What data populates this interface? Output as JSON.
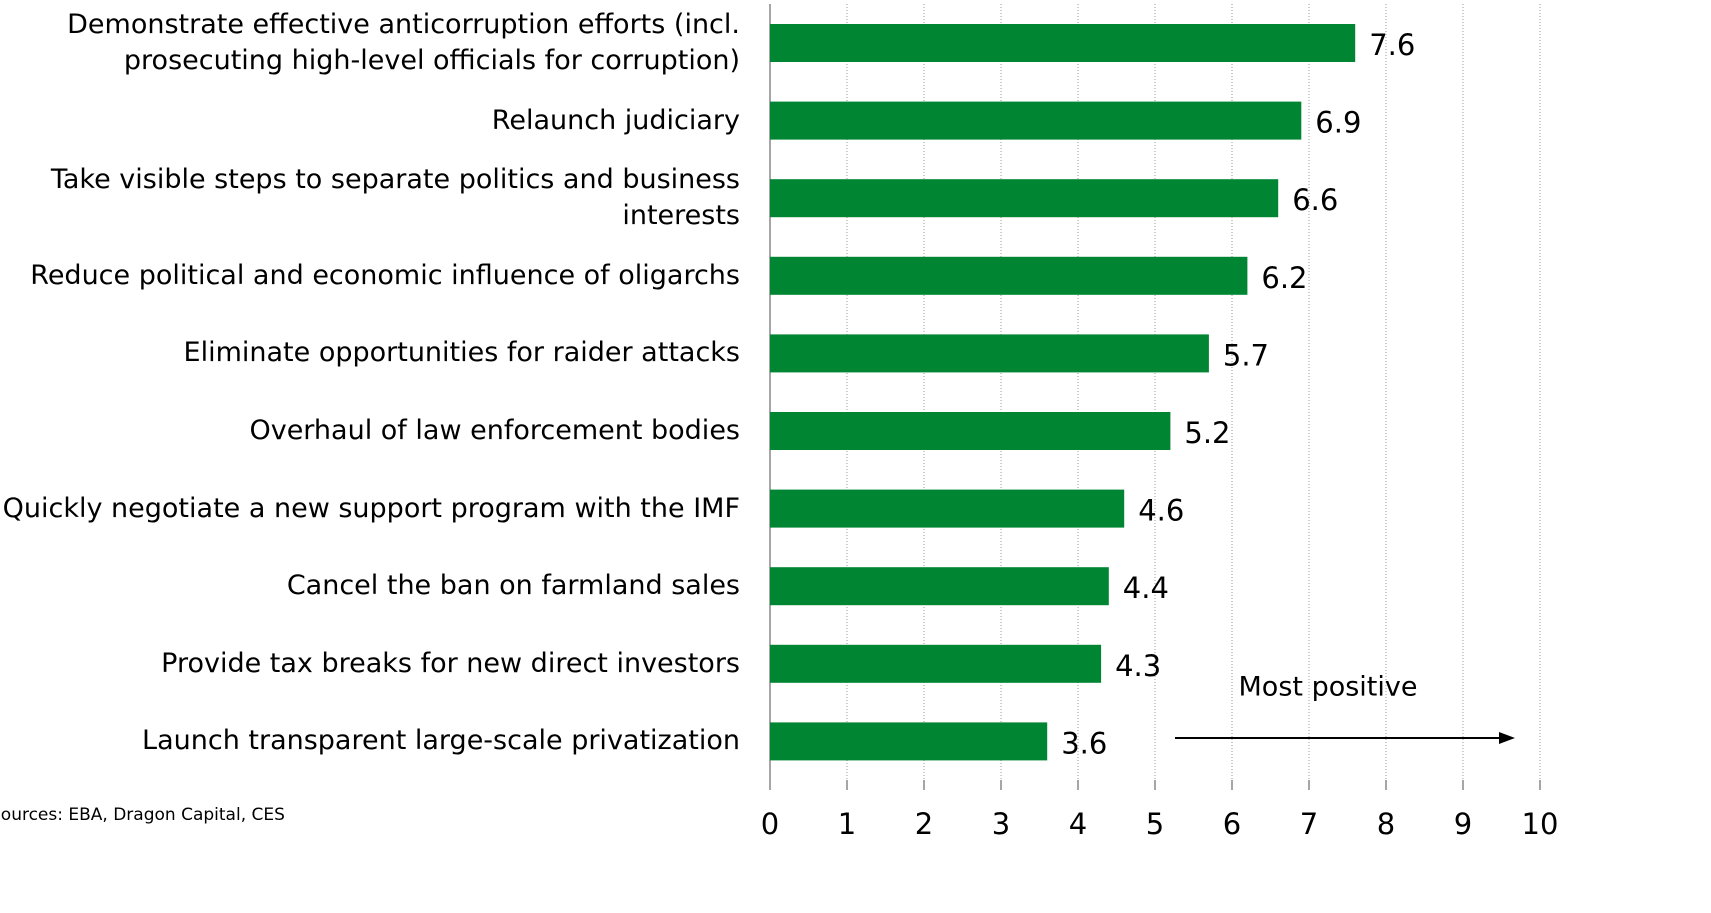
{
  "chart_data": {
    "type": "bar",
    "orientation": "horizontal",
    "categories": [
      "Demonstrate effective anticorruption efforts (incl. prosecuting high-level officials for corruption)",
      "Relaunch judiciary",
      "Take visible steps to separate politics and business interests",
      "Reduce political and economic influence of oligarchs",
      "Eliminate opportunities for raider attacks",
      "Overhaul of law enforcement bodies",
      "Quickly negotiate a new support program with the IMF",
      "Cancel the ban on farmland sales",
      "Provide tax breaks for new direct investors",
      "Launch transparent large-scale privatization"
    ],
    "values": [
      7.6,
      6.9,
      6.6,
      6.2,
      5.7,
      5.2,
      4.6,
      4.4,
      4.3,
      3.6
    ],
    "color": "#008533",
    "xlim": [
      0,
      10
    ],
    "xticks": [
      0,
      1,
      2,
      3,
      4,
      5,
      6,
      7,
      8,
      9,
      10
    ],
    "grid": true,
    "annotation": "Most positive",
    "source": "Sources: EBA, Dragon Capital, CES"
  }
}
